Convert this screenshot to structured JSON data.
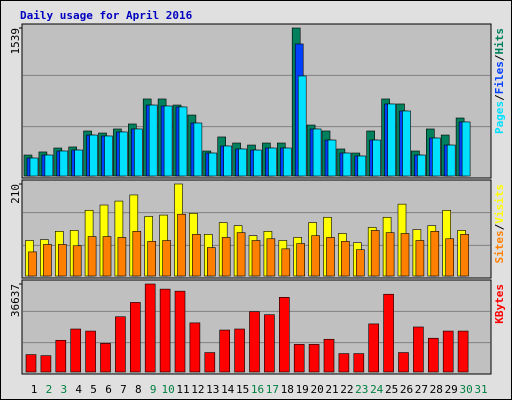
{
  "chart_data": [
    {
      "type": "bar",
      "title": "Daily usage for April 2016",
      "legend_separator": "/",
      "series": [
        {
          "name": "Hits",
          "color": "#00805c",
          "values": [
            218,
            250,
            291,
            302,
            468,
            447,
            489,
            541,
            801,
            801,
            738,
            634,
            260,
            406,
            343,
            322,
            343,
            343,
            1539,
            530,
            468,
            281,
            239,
            468,
            801,
            749,
            260,
            489,
            426,
            603,
            null
          ]
        },
        {
          "name": "Files",
          "color": "#0040ff",
          "values": [
            187,
            218,
            260,
            270,
            426,
            416,
            458,
            489,
            738,
            728,
            718,
            551,
            239,
            312,
            281,
            270,
            291,
            291,
            1373,
            489,
            374,
            239,
            208,
            374,
            749,
            676,
            218,
            395,
            322,
            562,
            null
          ]
        },
        {
          "name": "Pages",
          "color": "#00e0ff",
          "values": [
            187,
            218,
            260,
            270,
            426,
            416,
            458,
            489,
            738,
            728,
            718,
            551,
            239,
            312,
            281,
            270,
            291,
            291,
            1040,
            489,
            374,
            239,
            208,
            374,
            749,
            676,
            218,
            395,
            322,
            562,
            null
          ]
        }
      ],
      "ylim": [
        0,
        1539
      ],
      "yticks": [
        1539
      ]
    },
    {
      "type": "bar",
      "legend_separator": "/",
      "series": [
        {
          "name": "Visits",
          "color": "#ffff00",
          "values": [
            81,
            83,
            102,
            104,
            150,
            162,
            171,
            185,
            136,
            139,
            210,
            143,
            95,
            122,
            115,
            92,
            102,
            81,
            88,
            122,
            134,
            97,
            76,
            111,
            134,
            164,
            106,
            115,
            150,
            104,
            null
          ]
        },
        {
          "name": "Sites",
          "color": "#ff8000",
          "values": [
            55,
            72,
            72,
            69,
            90,
            90,
            88,
            102,
            79,
            81,
            141,
            95,
            65,
            88,
            99,
            81,
            85,
            62,
            74,
            92,
            88,
            79,
            60,
            104,
            99,
            97,
            81,
            102,
            85,
            95,
            null
          ]
        }
      ],
      "ylim": [
        0,
        210
      ],
      "yticks": [
        210
      ]
    },
    {
      "type": "bar",
      "categories": [
        "1",
        "2",
        "3",
        "4",
        "5",
        "6",
        "7",
        "8",
        "9",
        "10",
        "11",
        "12",
        "13",
        "14",
        "15",
        "16",
        "17",
        "18",
        "19",
        "20",
        "21",
        "22",
        "23",
        "24",
        "25",
        "26",
        "27",
        "28",
        "29",
        "30",
        "31"
      ],
      "category_colors": [
        "#000000",
        "#008040",
        "#008040",
        "#000000",
        "#000000",
        "#000000",
        "#000000",
        "#000000",
        "#008040",
        "#008040",
        "#000000",
        "#000000",
        "#000000",
        "#000000",
        "#000000",
        "#008040",
        "#008040",
        "#000000",
        "#000000",
        "#000000",
        "#000000",
        "#000000",
        "#008040",
        "#008040",
        "#000000",
        "#000000",
        "#000000",
        "#000000",
        "#000000",
        "#008040",
        "#008040"
      ],
      "series": [
        {
          "name": "KBytes",
          "color": "#ff0000",
          "values": [
            7242,
            6816,
            13206,
            17892,
            17040,
            11928,
            23004,
            28968,
            36637,
            34506,
            33654,
            20448,
            8094,
            17466,
            17892,
            25134,
            23856,
            31098,
            11502,
            11502,
            13632,
            7668,
            7668,
            20022,
            32376,
            8094,
            18744,
            14058,
            17040,
            17040,
            null
          ]
        }
      ],
      "ylim": [
        0,
        36637
      ],
      "yticks": [
        36637
      ]
    }
  ]
}
